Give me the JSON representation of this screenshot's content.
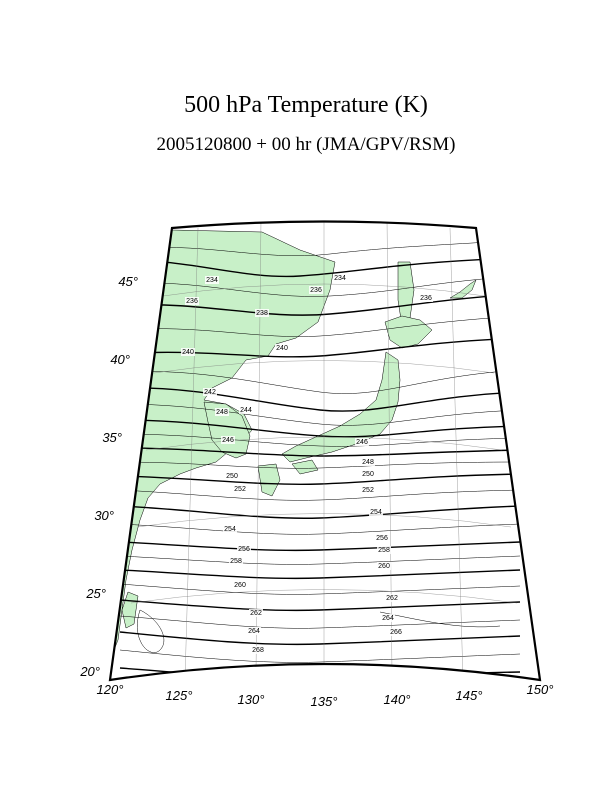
{
  "title": "500 hPa Temperature (K)",
  "subtitle": "2005120800 + 00 hr (JMA/GPV/RSM)",
  "map": {
    "land_color": "#c8f0c8",
    "longitude_labels": [
      "120°",
      "125°",
      "130°",
      "135°",
      "140°",
      "145°",
      "150°"
    ],
    "latitude_labels": [
      "20°",
      "25°",
      "30°",
      "35°",
      "40°",
      "45°"
    ],
    "contour_labels": [
      "234",
      "234",
      "236",
      "236",
      "236",
      "238",
      "240",
      "240",
      "242",
      "244",
      "246",
      "246",
      "248",
      "248",
      "250",
      "250",
      "252",
      "252",
      "254",
      "254",
      "256",
      "256",
      "258",
      "258",
      "260",
      "260",
      "262",
      "262",
      "264",
      "264",
      "266",
      "268"
    ]
  }
}
